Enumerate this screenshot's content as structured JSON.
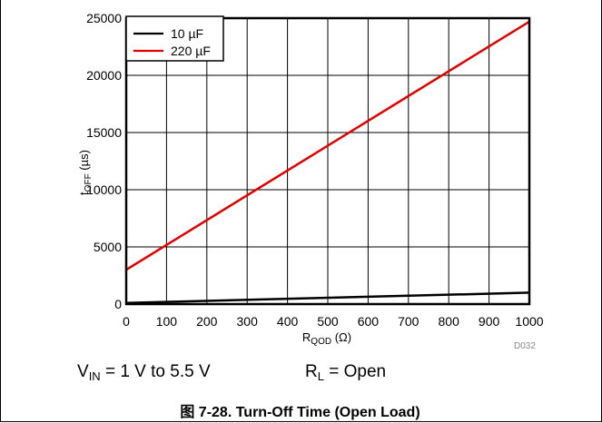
{
  "chart_data": {
    "type": "line",
    "x": [
      0,
      1000
    ],
    "series": [
      {
        "name": "10 µF",
        "color": "#000000",
        "values": [
          100,
          1000
        ]
      },
      {
        "name": "220 µF",
        "color": "#e00000",
        "values": [
          3000,
          24700
        ]
      }
    ],
    "xlim": [
      0,
      1000
    ],
    "ylim": [
      0,
      25000
    ],
    "xticks": [
      "0",
      "100",
      "200",
      "300",
      "400",
      "500",
      "600",
      "700",
      "800",
      "900",
      "1000"
    ],
    "yticks": [
      "0",
      "5000",
      "10000",
      "15000",
      "20000",
      "25000"
    ],
    "xlabel": {
      "main": "R",
      "sub": "QOD",
      "unit": " (Ω)"
    },
    "ylabel": {
      "main": "t",
      "sub": "OFF",
      "unit": " (µs)"
    },
    "grid": true,
    "legend_position": "top-left"
  },
  "figure_id": "D032",
  "conditions": {
    "vin": {
      "main": "V",
      "sub": "IN",
      "rest": " = 1 V to 5.5 V"
    },
    "rl": {
      "main": "R",
      "sub": "L",
      "rest": " = Open"
    }
  },
  "caption": "图 7-28. Turn-Off Time (Open Load)"
}
